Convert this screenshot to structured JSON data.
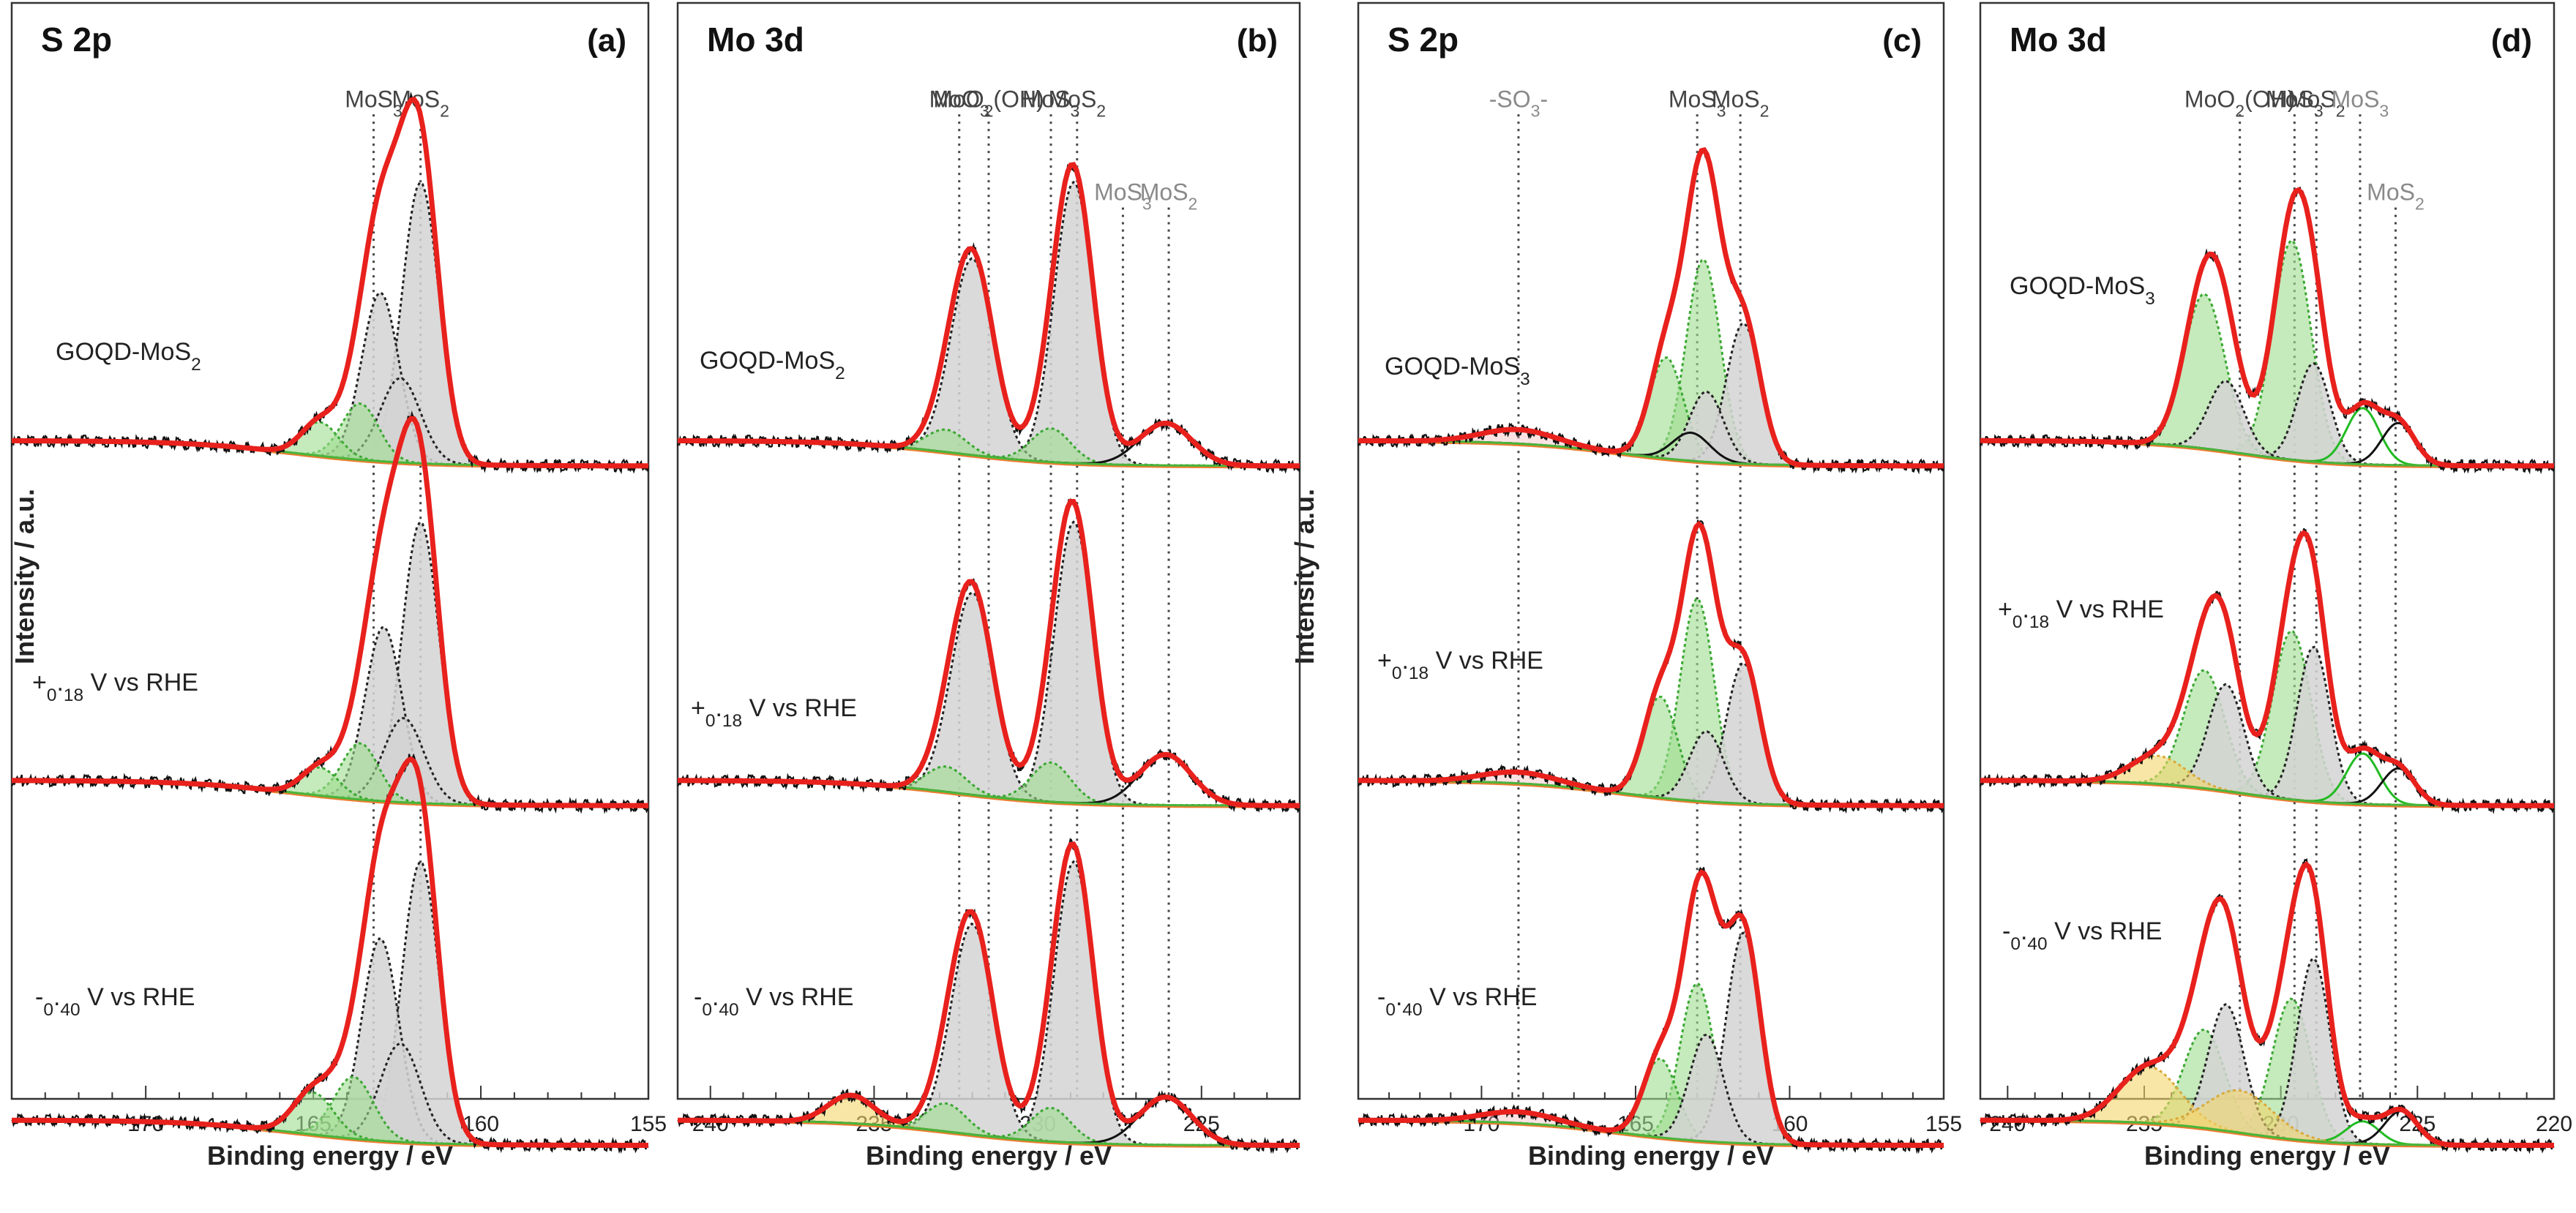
{
  "figure": {
    "ylabel": "Intensity / a.u.",
    "xlabel": "Binding energy / eV"
  },
  "chart_data": [
    {
      "id": "a",
      "type": "line",
      "spectrum": "S 2p",
      "label": "(a)",
      "xlim": [
        174,
        155
      ],
      "xticks": [
        170,
        165,
        160,
        155
      ],
      "xlabel": "Binding energy / eV",
      "refs": [
        {
          "energy": 163.2,
          "label": "MoS3",
          "color": "#444444"
        },
        {
          "energy": 161.8,
          "label": "MoS2",
          "color": "#444444"
        }
      ],
      "traces": [
        {
          "name": "GOQD-MoS2",
          "peaks": [
            {
              "c": 161.8,
              "a": 1.0,
              "w": 0.55,
              "comp": "gray"
            },
            {
              "c": 163.0,
              "a": 0.6,
              "w": 0.55,
              "comp": "gray"
            },
            {
              "c": 162.4,
              "a": 0.3,
              "w": 0.6,
              "comp": "gray"
            },
            {
              "c": 163.6,
              "a": 0.2,
              "w": 0.55,
              "comp": "green"
            },
            {
              "c": 164.8,
              "a": 0.12,
              "w": 0.55,
              "comp": "green"
            }
          ]
        },
        {
          "name": "+0.18 V vs RHE",
          "peaks": [
            {
              "c": 161.8,
              "a": 1.0,
              "w": 0.55,
              "comp": "gray"
            },
            {
              "c": 162.9,
              "a": 0.62,
              "w": 0.55,
              "comp": "gray"
            },
            {
              "c": 162.3,
              "a": 0.3,
              "w": 0.6,
              "comp": "gray"
            },
            {
              "c": 163.6,
              "a": 0.2,
              "w": 0.55,
              "comp": "green"
            },
            {
              "c": 164.8,
              "a": 0.1,
              "w": 0.55,
              "comp": "green"
            }
          ]
        },
        {
          "name": "-0.40 V vs RHE",
          "peaks": [
            {
              "c": 161.8,
              "a": 1.0,
              "w": 0.55,
              "comp": "gray"
            },
            {
              "c": 163.0,
              "a": 0.72,
              "w": 0.55,
              "comp": "gray"
            },
            {
              "c": 162.4,
              "a": 0.35,
              "w": 0.6,
              "comp": "gray"
            },
            {
              "c": 163.8,
              "a": 0.22,
              "w": 0.6,
              "comp": "green"
            },
            {
              "c": 165.0,
              "a": 0.15,
              "w": 0.6,
              "comp": "green"
            }
          ]
        }
      ]
    },
    {
      "id": "b",
      "type": "line",
      "spectrum": "Mo 3d",
      "label": "(b)",
      "xlim": [
        241,
        222
      ],
      "xticks": [
        240,
        235,
        230,
        225
      ],
      "xlabel": "Binding energy / eV",
      "refs": [
        {
          "energy": 232.4,
          "label": "MoO3",
          "color": "#444444"
        },
        {
          "energy": 231.5,
          "label": "MoO2(OH)",
          "color": "#444444"
        },
        {
          "energy": 229.6,
          "label": "MoS3",
          "color": "#444444"
        },
        {
          "energy": 228.8,
          "label": "MoS2",
          "color": "#444444"
        },
        {
          "energy": 227.4,
          "label": "MoS3",
          "color": "#8a8a8a"
        },
        {
          "energy": 226.0,
          "label": "MoS2",
          "color": "#8a8a8a"
        }
      ],
      "traces": [
        {
          "name": "GOQD-MoS2",
          "peaks": [
            {
              "c": 228.9,
              "a": 1.0,
              "w": 0.6,
              "comp": "gray"
            },
            {
              "c": 232.0,
              "a": 0.7,
              "w": 0.65,
              "comp": "gray"
            },
            {
              "c": 229.6,
              "a": 0.12,
              "w": 0.6,
              "comp": "green"
            },
            {
              "c": 232.8,
              "a": 0.08,
              "w": 0.6,
              "comp": "green"
            },
            {
              "c": 226.1,
              "a": 0.15,
              "w": 0.8,
              "comp": "black"
            }
          ]
        },
        {
          "name": "+0.18 V vs RHE",
          "peaks": [
            {
              "c": 228.9,
              "a": 1.0,
              "w": 0.6,
              "comp": "gray"
            },
            {
              "c": 232.0,
              "a": 0.72,
              "w": 0.65,
              "comp": "gray"
            },
            {
              "c": 229.6,
              "a": 0.14,
              "w": 0.6,
              "comp": "green"
            },
            {
              "c": 232.8,
              "a": 0.09,
              "w": 0.6,
              "comp": "green"
            },
            {
              "c": 226.1,
              "a": 0.18,
              "w": 0.8,
              "comp": "black"
            }
          ]
        },
        {
          "name": "-0.40 V vs RHE",
          "peaks": [
            {
              "c": 228.9,
              "a": 1.0,
              "w": 0.6,
              "comp": "gray"
            },
            {
              "c": 232.0,
              "a": 0.75,
              "w": 0.65,
              "comp": "gray"
            },
            {
              "c": 229.6,
              "a": 0.12,
              "w": 0.6,
              "comp": "green"
            },
            {
              "c": 232.8,
              "a": 0.1,
              "w": 0.6,
              "comp": "green"
            },
            {
              "c": 235.7,
              "a": 0.1,
              "w": 0.7,
              "comp": "yellow"
            },
            {
              "c": 226.1,
              "a": 0.17,
              "w": 0.8,
              "comp": "black"
            }
          ]
        }
      ]
    },
    {
      "id": "c",
      "type": "line",
      "spectrum": "S 2p",
      "label": "(c)",
      "xlim": [
        174,
        155
      ],
      "xticks": [
        170,
        165,
        160,
        155
      ],
      "xlabel": "Binding energy / eV",
      "refs": [
        {
          "energy": 168.8,
          "label": "-SO3-",
          "color": "#8a8a8a"
        },
        {
          "energy": 163.0,
          "label": "MoS3",
          "color": "#444444"
        },
        {
          "energy": 161.6,
          "label": "MoS2",
          "color": "#444444"
        }
      ],
      "traces": [
        {
          "name": "GOQD-MoS3",
          "peaks": [
            {
              "c": 162.8,
              "a": 0.72,
              "w": 0.55,
              "comp": "green"
            },
            {
              "c": 164.0,
              "a": 0.36,
              "w": 0.55,
              "comp": "green"
            },
            {
              "c": 161.5,
              "a": 0.5,
              "w": 0.55,
              "comp": "gray"
            },
            {
              "c": 162.7,
              "a": 0.25,
              "w": 0.55,
              "comp": "gray"
            },
            {
              "c": 163.2,
              "a": 0.1,
              "w": 0.6,
              "comp": "black"
            },
            {
              "c": 168.8,
              "a": 0.05,
              "w": 1.2,
              "comp": "red"
            }
          ]
        },
        {
          "name": "+0.18 V vs RHE",
          "peaks": [
            {
              "c": 163.0,
              "a": 0.72,
              "w": 0.55,
              "comp": "green"
            },
            {
              "c": 164.2,
              "a": 0.36,
              "w": 0.55,
              "comp": "green"
            },
            {
              "c": 161.5,
              "a": 0.5,
              "w": 0.55,
              "comp": "gray"
            },
            {
              "c": 162.7,
              "a": 0.25,
              "w": 0.55,
              "comp": "gray"
            },
            {
              "c": 168.8,
              "a": 0.04,
              "w": 1.2,
              "comp": "red"
            }
          ]
        },
        {
          "name": "-0.40 V vs RHE",
          "peaks": [
            {
              "c": 163.0,
              "a": 0.56,
              "w": 0.55,
              "comp": "green"
            },
            {
              "c": 164.2,
              "a": 0.28,
              "w": 0.55,
              "comp": "green"
            },
            {
              "c": 161.5,
              "a": 0.75,
              "w": 0.55,
              "comp": "gray"
            },
            {
              "c": 162.7,
              "a": 0.38,
              "w": 0.55,
              "comp": "gray"
            },
            {
              "c": 168.8,
              "a": 0.04,
              "w": 1.2,
              "comp": "red"
            }
          ]
        }
      ]
    },
    {
      "id": "d",
      "type": "line",
      "spectrum": "Mo 3d",
      "label": "(d)",
      "xlim": [
        241,
        220
      ],
      "xticks": [
        240,
        235,
        230,
        225,
        220
      ],
      "xlabel": "Binding energy / eV",
      "refs": [
        {
          "energy": 231.5,
          "label": "MoO2(OH)",
          "color": "#444444"
        },
        {
          "energy": 229.5,
          "label": "MoS3",
          "color": "#444444"
        },
        {
          "energy": 228.7,
          "label": "MoS2",
          "color": "#444444"
        },
        {
          "energy": 227.1,
          "label": "MoS3",
          "color": "#8a8a8a"
        },
        {
          "energy": 225.8,
          "label": "MoS2",
          "color": "#8a8a8a"
        }
      ],
      "traces": [
        {
          "name": "GOQD-MoS3",
          "peaks": [
            {
              "c": 229.6,
              "a": 0.78,
              "w": 0.7,
              "comp": "green"
            },
            {
              "c": 232.8,
              "a": 0.55,
              "w": 0.75,
              "comp": "green"
            },
            {
              "c": 228.8,
              "a": 0.35,
              "w": 0.6,
              "comp": "gray"
            },
            {
              "c": 232.0,
              "a": 0.25,
              "w": 0.65,
              "comp": "gray"
            },
            {
              "c": 227.0,
              "a": 0.2,
              "w": 0.6,
              "comp": "brightgreen"
            },
            {
              "c": 225.7,
              "a": 0.15,
              "w": 0.6,
              "comp": "black"
            }
          ]
        },
        {
          "name": "+0.18 V vs RHE",
          "peaks": [
            {
              "c": 229.6,
              "a": 0.6,
              "w": 0.7,
              "comp": "green"
            },
            {
              "c": 232.8,
              "a": 0.42,
              "w": 0.75,
              "comp": "green"
            },
            {
              "c": 228.8,
              "a": 0.55,
              "w": 0.6,
              "comp": "gray"
            },
            {
              "c": 232.0,
              "a": 0.38,
              "w": 0.65,
              "comp": "gray"
            },
            {
              "c": 227.0,
              "a": 0.18,
              "w": 0.6,
              "comp": "brightgreen"
            },
            {
              "c": 225.7,
              "a": 0.13,
              "w": 0.6,
              "comp": "black"
            },
            {
              "c": 234.5,
              "a": 0.1,
              "w": 1.0,
              "comp": "yellow"
            }
          ]
        },
        {
          "name": "-0.40 V vs RHE",
          "peaks": [
            {
              "c": 229.6,
              "a": 0.5,
              "w": 0.7,
              "comp": "green"
            },
            {
              "c": 232.8,
              "a": 0.35,
              "w": 0.75,
              "comp": "green"
            },
            {
              "c": 228.8,
              "a": 0.65,
              "w": 0.6,
              "comp": "gray"
            },
            {
              "c": 232.0,
              "a": 0.45,
              "w": 0.65,
              "comp": "gray"
            },
            {
              "c": 227.0,
              "a": 0.08,
              "w": 0.6,
              "comp": "brightgreen"
            },
            {
              "c": 225.6,
              "a": 0.12,
              "w": 0.6,
              "comp": "black"
            },
            {
              "c": 234.8,
              "a": 0.2,
              "w": 1.1,
              "comp": "yellow"
            },
            {
              "c": 231.5,
              "a": 0.15,
              "w": 1.2,
              "comp": "yellow"
            }
          ]
        }
      ]
    }
  ]
}
